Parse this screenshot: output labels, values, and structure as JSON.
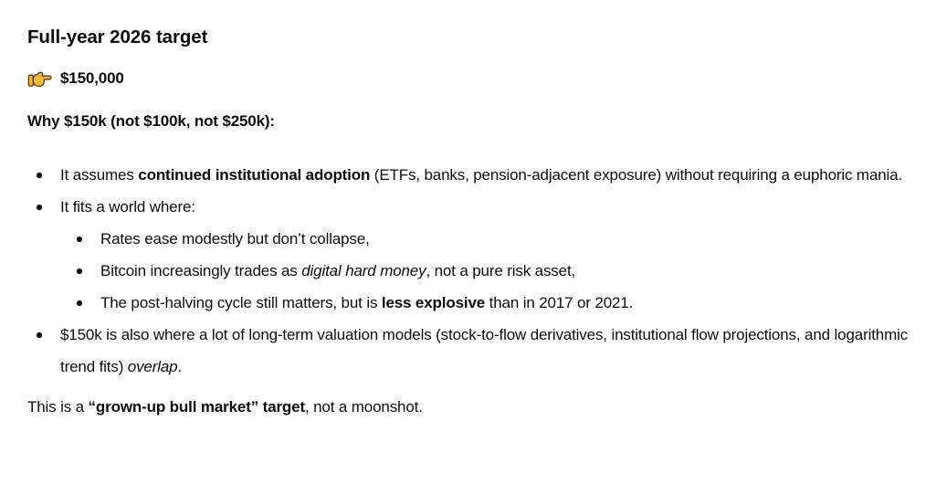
{
  "colors": {
    "text": "#0d0d0d",
    "background": "#ffffff",
    "hand_fill": "#F5B93E",
    "hand_outline": "#55380E"
  },
  "heading": "Full-year 2026 target",
  "target_line": {
    "icon": "pointing-right-hand-emoji",
    "amount": "$150,000"
  },
  "why_heading": "Why $150k (not $100k, not $250k):",
  "bullets": {
    "adoption": [
      {
        "text": "It assumes "
      },
      {
        "text": "continued institutional adoption",
        "bold": true
      },
      {
        "text": " (ETFs, banks, pension-adjacent exposure) without requiring a euphoric mania."
      }
    ],
    "world": [
      {
        "text": "It fits a world where:"
      }
    ],
    "world_children": {
      "rates": [
        {
          "text": "Rates ease modestly but don’t collapse,"
        }
      ],
      "hard_money": [
        {
          "text": "Bitcoin increasingly trades as "
        },
        {
          "text": "digital hard money",
          "italic": true
        },
        {
          "text": ", not a pure risk asset,"
        }
      ],
      "halving": [
        {
          "text": "The post-halving cycle still matters, but is "
        },
        {
          "text": "less explosive",
          "bold": true
        },
        {
          "text": " than in 2017 or 2021."
        }
      ]
    },
    "valuation": [
      {
        "text": "$150k is also where a lot of long-term valuation models (stock-to-flow derivatives, institutional flow projections, and logarithmic trend fits) "
      },
      {
        "text": "overlap",
        "italic": true
      },
      {
        "text": "."
      }
    ]
  },
  "closing": [
    {
      "text": "This is a "
    },
    {
      "text": "“grown-up bull market” target",
      "bold": true
    },
    {
      "text": ", not a moonshot."
    }
  ]
}
